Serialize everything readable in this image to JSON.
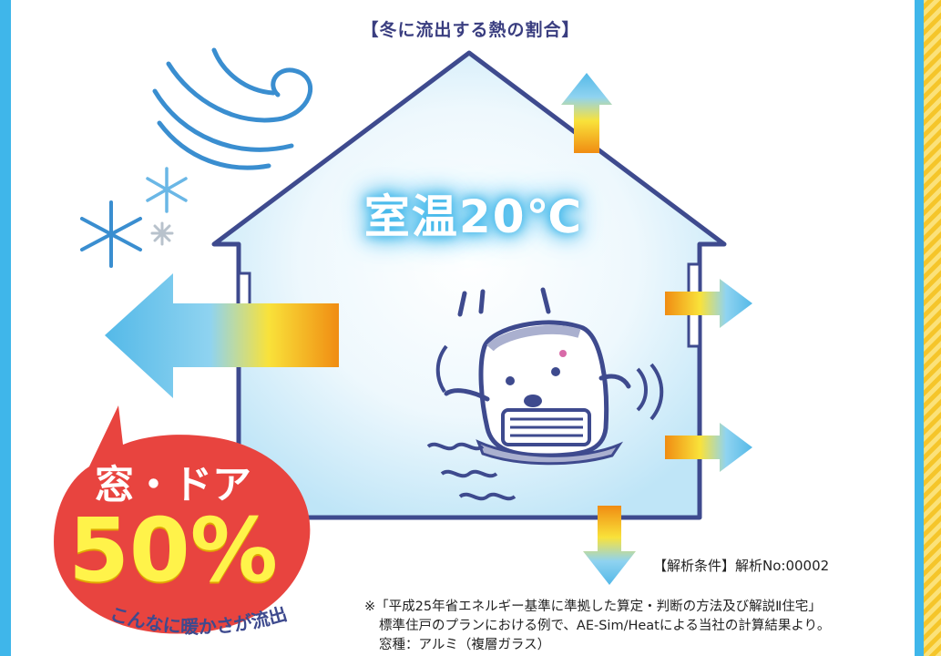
{
  "title": "【冬に流出する熱の割合】",
  "room_temp": "室温20℃",
  "window_door": {
    "label": "窓・ドア",
    "percent": "50%",
    "caption": "こんなに暖かさが流出"
  },
  "analysis_condition": "【解析条件】解析No:00002",
  "notes": [
    "※「平成25年省エネルギー基準に準拠した算定・判断の方法及び解説Ⅱ住宅」",
    "標準住戸のプランにおける例で、AE-Sim/Heatによる当社の計算結果より。",
    "窓種：アルミ（複層ガラス）"
  ],
  "colors": {
    "frame": "#3fb6ea",
    "stripe": "#f5c52a",
    "bubble": "#e8443f",
    "percent": "#fff34a",
    "house_outline": "#3e4a8e",
    "arrow_orange": "#f08c12",
    "arrow_blue": "#54b9e8"
  }
}
